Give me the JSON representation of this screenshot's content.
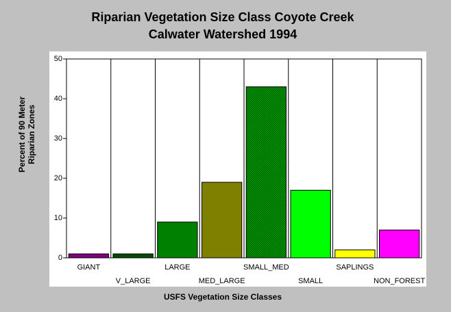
{
  "chart_data": {
    "type": "bar",
    "title": [
      "Riparian Vegetation Size Class Coyote Creek",
      "Calwater Watershed 1994"
    ],
    "x_label": "USFS Vegetation Size Classes",
    "y_label": [
      "Percent of 90 Meter",
      "Riparian Zones"
    ],
    "categories": [
      "GIANT",
      "V_LARGE",
      "LARGE",
      "MED_LARGE",
      "SMALL_MED",
      "SMALL",
      "SAPLINGS",
      "NON_FOREST"
    ],
    "values": [
      1,
      1,
      9,
      19,
      43,
      17,
      2,
      7
    ],
    "colors": [
      "#800080",
      "#004d00",
      "#008000",
      "#808000",
      "#00a000",
      "#00ff00",
      "#ffff00",
      "#ff00ff"
    ],
    "hatch": [
      false,
      false,
      false,
      false,
      true,
      false,
      false,
      false
    ],
    "ylim": [
      0,
      50
    ],
    "yticks": [
      0,
      10,
      20,
      30,
      40,
      50
    ],
    "vertical_grid": true
  }
}
